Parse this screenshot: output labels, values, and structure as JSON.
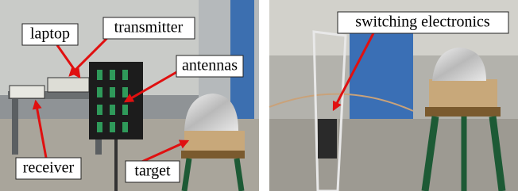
{
  "panels": [
    {
      "labels": [
        "laptop",
        "transmitter",
        "antennas",
        "receiver",
        "target"
      ]
    },
    {
      "labels": [
        "switching electronics"
      ]
    }
  ]
}
